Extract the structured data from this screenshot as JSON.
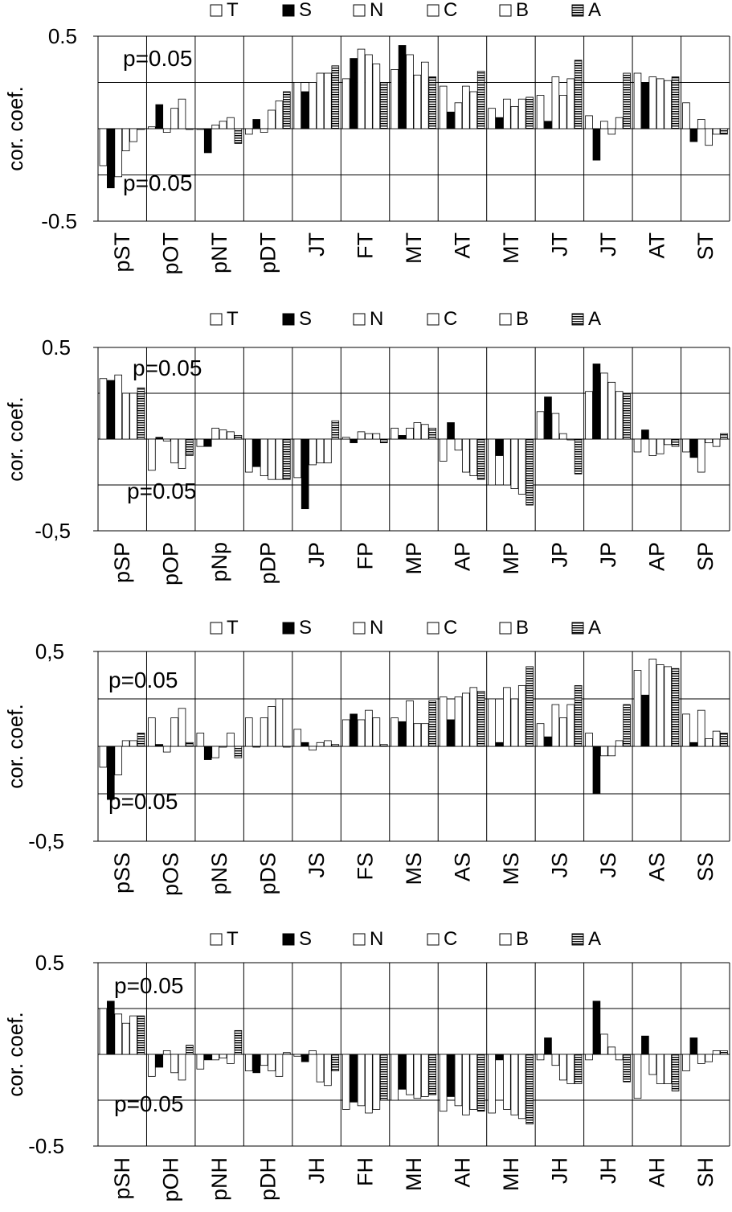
{
  "legend": [
    {
      "label": "T",
      "style": "white"
    },
    {
      "label": "S",
      "style": "black"
    },
    {
      "label": "N",
      "style": "white"
    },
    {
      "label": "C",
      "style": "white"
    },
    {
      "label": "B",
      "style": "white"
    },
    {
      "label": "A",
      "style": "hatched"
    }
  ],
  "colors": {
    "axis": "#000000",
    "bar_fill": "#ffffff",
    "bar_dark": "#000000"
  },
  "chart_data": [
    {
      "type": "bar",
      "ylabel": "cor. coef.",
      "ylim": [
        -0.5,
        0.5
      ],
      "ytick_labels": [
        "0.5",
        "-0.5"
      ],
      "threshold_labels": [
        "p=0.05",
        "p=0.05"
      ],
      "threshold": 0.25,
      "series_names": [
        "T",
        "S",
        "N",
        "C",
        "B",
        "A"
      ],
      "categories": [
        "pST",
        "pOT",
        "pNT",
        "pDT",
        "JT",
        "FT",
        "MT",
        "AT",
        "MT",
        "JT",
        "JT",
        "AT",
        "ST"
      ],
      "values": [
        [
          -0.2,
          -0.32,
          -0.26,
          -0.12,
          -0.07,
          0.0
        ],
        [
          0.01,
          0.13,
          -0.02,
          0.11,
          0.16,
          0.0
        ],
        [
          0.0,
          -0.13,
          0.02,
          0.04,
          0.06,
          -0.08
        ],
        [
          -0.03,
          0.05,
          -0.02,
          0.1,
          0.15,
          0.2
        ],
        [
          0.25,
          0.2,
          0.25,
          0.3,
          0.3,
          0.34
        ],
        [
          0.27,
          0.38,
          0.43,
          0.4,
          0.35,
          0.25
        ],
        [
          0.32,
          0.45,
          0.4,
          0.29,
          0.36,
          0.28
        ],
        [
          0.23,
          0.09,
          0.14,
          0.23,
          0.2,
          0.31
        ],
        [
          0.11,
          0.06,
          0.16,
          0.12,
          0.16,
          0.17
        ],
        [
          0.18,
          0.04,
          0.28,
          0.18,
          0.27,
          0.37
        ],
        [
          0.07,
          -0.17,
          0.04,
          -0.03,
          0.06,
          0.3
        ],
        [
          0.3,
          0.25,
          0.28,
          0.27,
          0.26,
          0.28
        ],
        [
          0.14,
          -0.07,
          0.05,
          -0.09,
          -0.03,
          -0.03
        ]
      ]
    },
    {
      "type": "bar",
      "ylabel": "cor. coef.",
      "ylim": [
        -0.5,
        0.5
      ],
      "ytick_labels": [
        "0.5",
        "-0,5"
      ],
      "threshold_labels": [
        "p=0.05",
        "p=0.05"
      ],
      "threshold": 0.25,
      "series_names": [
        "T",
        "S",
        "N",
        "C",
        "B",
        "A"
      ],
      "categories": [
        "pSP",
        "pOP",
        "pNp",
        "pDP",
        "JP",
        "FP",
        "MP",
        "AP",
        "MP",
        "JP",
        "JP",
        "AP",
        "SP"
      ],
      "values": [
        [
          0.33,
          0.32,
          0.35,
          0.25,
          0.25,
          0.28
        ],
        [
          -0.17,
          0.01,
          -0.01,
          -0.13,
          -0.16,
          -0.09
        ],
        [
          -0.04,
          -0.04,
          0.06,
          0.05,
          0.04,
          0.02
        ],
        [
          -0.18,
          -0.15,
          -0.2,
          -0.22,
          -0.22,
          -0.22
        ],
        [
          -0.21,
          -0.38,
          -0.14,
          -0.13,
          -0.13,
          0.1
        ],
        [
          0.01,
          -0.02,
          0.04,
          0.03,
          0.03,
          -0.02
        ],
        [
          0.06,
          0.02,
          0.06,
          0.09,
          0.08,
          0.06
        ],
        [
          -0.12,
          0.09,
          -0.06,
          -0.18,
          -0.2,
          -0.22
        ],
        [
          -0.25,
          -0.09,
          -0.25,
          -0.27,
          -0.3,
          -0.36
        ],
        [
          0.15,
          0.23,
          0.14,
          0.03,
          0.0,
          -0.19
        ],
        [
          0.26,
          0.41,
          0.36,
          0.31,
          0.26,
          0.25
        ],
        [
          -0.07,
          0.05,
          -0.09,
          -0.08,
          -0.03,
          -0.04
        ],
        [
          -0.07,
          -0.1,
          -0.18,
          -0.02,
          -0.04,
          0.03
        ]
      ]
    },
    {
      "type": "bar",
      "ylabel": "cor. coef.",
      "ylim": [
        -0.5,
        0.5
      ],
      "ytick_labels": [
        "0,5",
        "-0,5"
      ],
      "threshold_labels": [
        "p=0.05",
        "p=0.05"
      ],
      "threshold": 0.25,
      "series_names": [
        "T",
        "S",
        "N",
        "C",
        "B",
        "A"
      ],
      "categories": [
        "pSS",
        "pOS",
        "pNS",
        "pDS",
        "JS",
        "FS",
        "MS",
        "AS",
        "MS",
        "JS",
        "JS",
        "AS",
        "SS"
      ],
      "values": [
        [
          -0.11,
          -0.28,
          -0.15,
          0.03,
          0.03,
          0.07
        ],
        [
          0.15,
          0.01,
          -0.03,
          0.15,
          0.2,
          0.02
        ],
        [
          0.07,
          -0.07,
          -0.06,
          0.0,
          0.07,
          -0.06
        ],
        [
          0.15,
          0.0,
          0.15,
          0.21,
          0.25,
          0.0
        ],
        [
          0.09,
          0.02,
          -0.02,
          0.02,
          0.03,
          0.01
        ],
        [
          0.14,
          0.17,
          0.14,
          0.19,
          0.15,
          0.01
        ],
        [
          0.15,
          0.13,
          0.24,
          0.12,
          0.12,
          0.24
        ],
        [
          0.26,
          0.14,
          0.26,
          0.28,
          0.31,
          0.29
        ],
        [
          0.25,
          0.02,
          0.31,
          0.25,
          0.32,
          0.42
        ],
        [
          0.12,
          0.05,
          0.22,
          0.15,
          0.22,
          0.32
        ],
        [
          0.07,
          -0.25,
          -0.05,
          -0.05,
          0.03,
          0.22
        ],
        [
          0.4,
          0.27,
          0.46,
          0.43,
          0.42,
          0.41
        ],
        [
          0.17,
          0.02,
          0.19,
          0.04,
          0.08,
          0.07
        ]
      ]
    },
    {
      "type": "bar",
      "ylabel": "cor. coef.",
      "ylim": [
        -0.5,
        0.5
      ],
      "ytick_labels": [
        "0.5",
        "-0.5"
      ],
      "threshold_labels": [
        "p=0.05",
        "p=0.05"
      ],
      "threshold": 0.25,
      "series_names": [
        "T",
        "S",
        "N",
        "C",
        "B",
        "A"
      ],
      "categories": [
        "pSH",
        "pOH",
        "pNH",
        "pDH",
        "JH",
        "FH",
        "MH",
        "AH",
        "MH",
        "JH",
        "JH",
        "AH",
        "SH"
      ],
      "values": [
        [
          0.25,
          0.29,
          0.22,
          0.17,
          0.21,
          0.21
        ],
        [
          -0.12,
          -0.07,
          0.02,
          -0.1,
          -0.14,
          0.05
        ],
        [
          -0.08,
          -0.03,
          -0.03,
          -0.02,
          -0.05,
          0.13
        ],
        [
          -0.09,
          -0.1,
          -0.06,
          -0.09,
          -0.12,
          0.01
        ],
        [
          -0.01,
          -0.04,
          0.02,
          -0.15,
          -0.17,
          -0.09
        ],
        [
          -0.3,
          -0.26,
          -0.28,
          -0.32,
          -0.3,
          -0.25
        ],
        [
          -0.25,
          -0.19,
          -0.22,
          -0.24,
          -0.23,
          -0.22
        ],
        [
          -0.31,
          -0.23,
          -0.28,
          -0.33,
          -0.3,
          -0.31
        ],
        [
          -0.32,
          -0.03,
          -0.3,
          -0.33,
          -0.35,
          -0.38
        ],
        [
          -0.03,
          0.09,
          -0.06,
          -0.14,
          -0.16,
          -0.16
        ],
        [
          -0.03,
          0.29,
          0.11,
          0.04,
          -0.03,
          -0.15
        ],
        [
          -0.24,
          0.1,
          -0.11,
          -0.16,
          -0.16,
          -0.2
        ],
        [
          -0.09,
          0.09,
          -0.05,
          -0.04,
          0.02,
          0.02
        ]
      ]
    }
  ]
}
